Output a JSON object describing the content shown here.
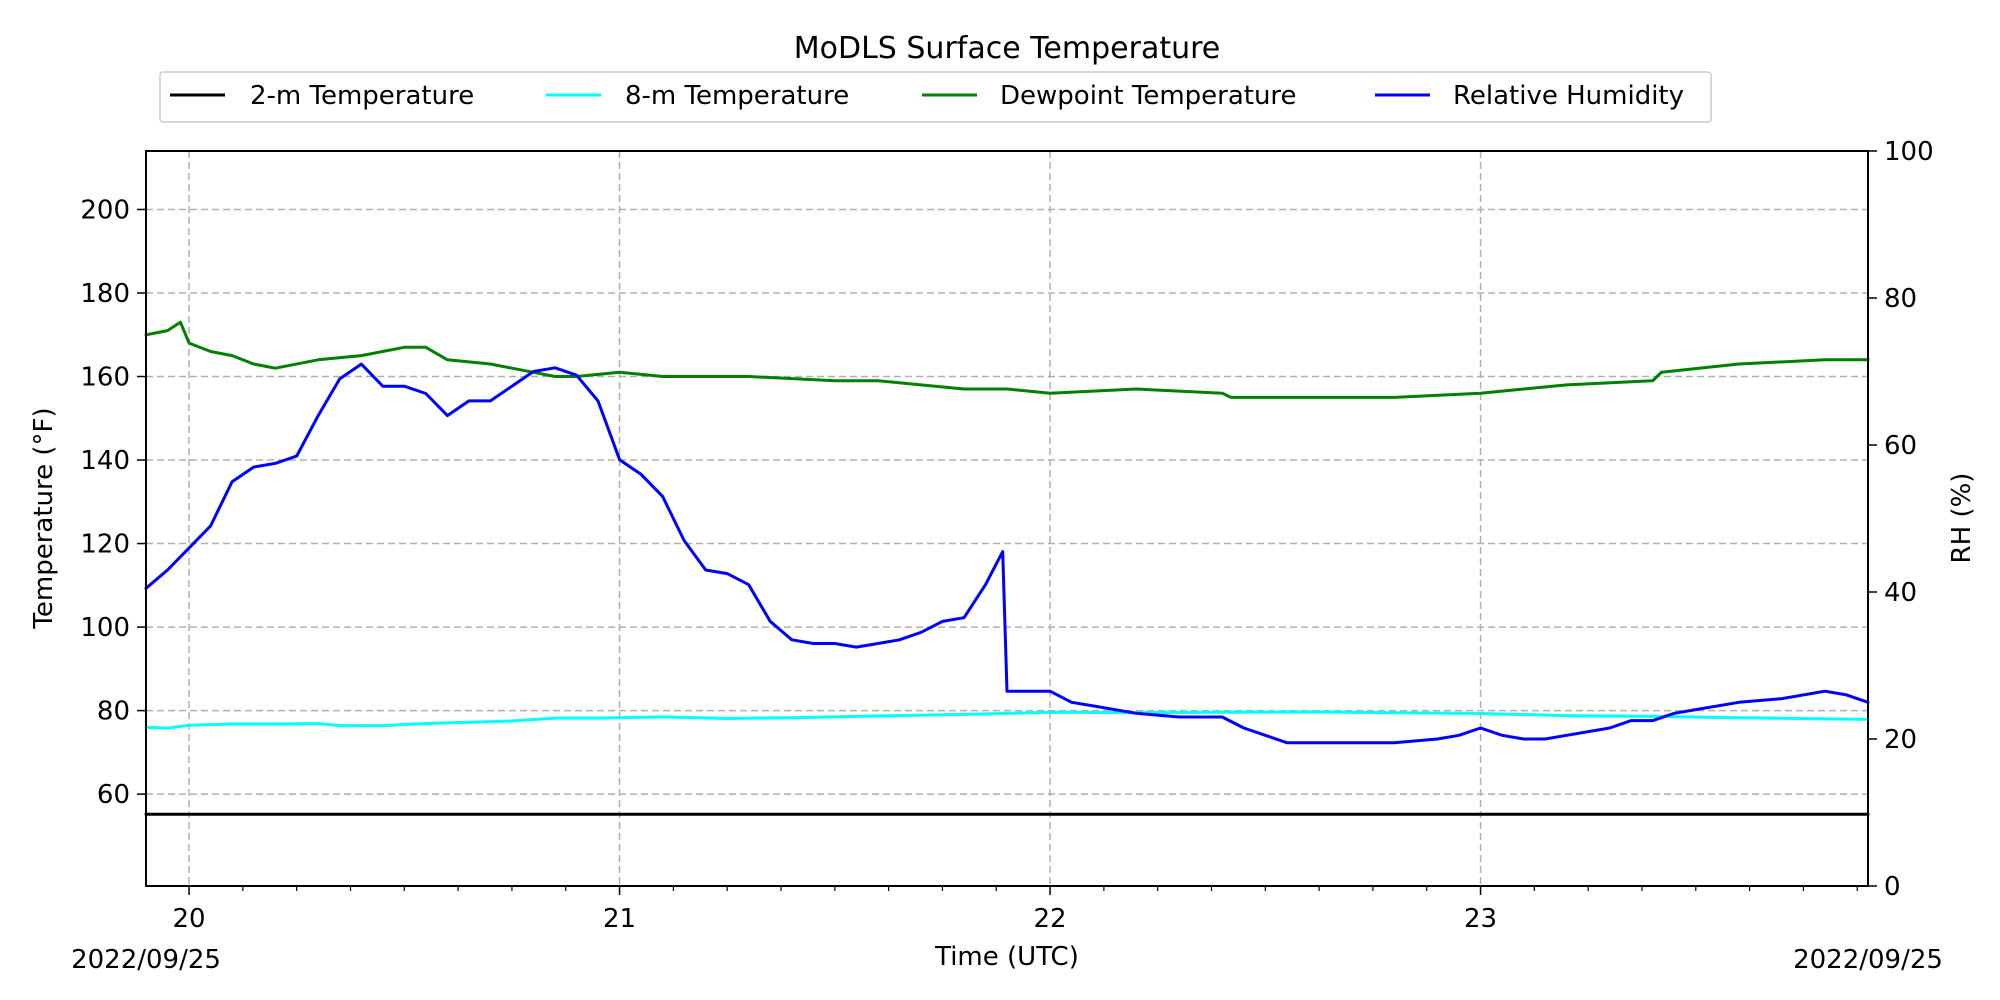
{
  "chart_data": {
    "type": "line",
    "title": "MoDLS Surface Temperature",
    "xlabel": "Time (UTC)",
    "ylabel_left": "Temperature ($^\\circ$F)",
    "ylabel_left_display": "Temperature (°F)",
    "ylabel_right": "RH (%)",
    "x_unit": "hour UTC, 2022/09/25",
    "xlim": [
      19.9,
      23.9
    ],
    "ylim_left": [
      38,
      214
    ],
    "ylim_right": [
      0,
      100
    ],
    "x_ticks": [
      20,
      21,
      22,
      23
    ],
    "x_tick_labels": [
      "20",
      "21",
      "22",
      "23"
    ],
    "y_ticks_left": [
      60,
      80,
      100,
      120,
      140,
      160,
      180,
      200
    ],
    "y_ticks_right": [
      0,
      20,
      40,
      60,
      80,
      100
    ],
    "date_left": "2022/09/25",
    "date_right": "2022/09/25",
    "grid": true,
    "legend_position": "top-center",
    "series": [
      {
        "name": "2-m Temperature",
        "color": "#000000",
        "axis": "left",
        "x": [
          19.9,
          23.9
        ],
        "y": [
          55.2,
          55.2
        ]
      },
      {
        "name": "8-m Temperature",
        "color": "#00ffff",
        "axis": "left",
        "x": [
          19.9,
          19.95,
          20.0,
          20.1,
          20.2,
          20.3,
          20.35,
          20.45,
          20.55,
          20.65,
          20.75,
          20.85,
          20.95,
          21.1,
          21.25,
          21.4,
          21.6,
          21.8,
          22.0,
          22.2,
          22.4,
          22.6,
          22.8,
          23.0,
          23.2,
          23.4,
          23.6,
          23.9
        ],
        "y": [
          76,
          75.8,
          76.5,
          76.8,
          76.8,
          76.9,
          76.4,
          76.4,
          76.9,
          77.2,
          77.5,
          78.2,
          78.2,
          78.5,
          78.1,
          78.3,
          78.7,
          79.1,
          79.6,
          79.5,
          79.6,
          79.7,
          79.5,
          79.3,
          78.8,
          78.6,
          78.3,
          77.9
        ]
      },
      {
        "name": "Dewpoint Temperature",
        "color": "#008000",
        "axis": "left",
        "x": [
          19.9,
          19.95,
          19.98,
          20.0,
          20.05,
          20.1,
          20.15,
          20.2,
          20.3,
          20.4,
          20.5,
          20.55,
          20.6,
          20.7,
          20.75,
          20.8,
          20.85,
          20.9,
          21.0,
          21.1,
          21.3,
          21.5,
          21.6,
          21.7,
          21.8,
          21.9,
          22.0,
          22.2,
          22.4,
          22.42,
          22.5,
          22.6,
          22.8,
          23.0,
          23.2,
          23.4,
          23.42,
          23.6,
          23.8,
          23.9
        ],
        "y": [
          170,
          171,
          173,
          168,
          166,
          165,
          163,
          162,
          164,
          165,
          167,
          167,
          164,
          163,
          162,
          161,
          160,
          160,
          161,
          160,
          160,
          159,
          159,
          158,
          157,
          157,
          156,
          157,
          156,
          155,
          155,
          155,
          155,
          156,
          158,
          159,
          161,
          163,
          164,
          164
        ]
      },
      {
        "name": "Relative Humidity",
        "color": "#0000ff",
        "axis": "right",
        "x": [
          19.9,
          19.95,
          20.0,
          20.05,
          20.1,
          20.15,
          20.2,
          20.25,
          20.3,
          20.35,
          20.4,
          20.45,
          20.5,
          20.55,
          20.6,
          20.65,
          20.7,
          20.75,
          20.8,
          20.85,
          20.9,
          20.95,
          21.0,
          21.05,
          21.1,
          21.15,
          21.2,
          21.25,
          21.3,
          21.35,
          21.4,
          21.45,
          21.5,
          21.55,
          21.6,
          21.65,
          21.7,
          21.75,
          21.8,
          21.85,
          21.89,
          21.9,
          21.95,
          22.0,
          22.05,
          22.1,
          22.2,
          22.3,
          22.4,
          22.45,
          22.5,
          22.55,
          22.6,
          22.7,
          22.8,
          22.9,
          22.95,
          23.0,
          23.05,
          23.1,
          23.15,
          23.2,
          23.3,
          23.35,
          23.4,
          23.45,
          23.5,
          23.6,
          23.7,
          23.8,
          23.85,
          23.9
        ],
        "y": [
          40.5,
          43,
          46,
          49,
          55,
          57,
          57.5,
          58.5,
          64,
          69,
          71,
          68,
          68,
          67,
          64,
          66,
          66,
          68,
          70,
          70.5,
          69.5,
          66,
          58,
          56,
          53,
          47,
          43,
          42.5,
          41,
          36,
          33.5,
          33,
          33,
          32.5,
          33,
          33.5,
          34.5,
          36,
          36.5,
          41,
          45.5,
          26.5,
          26.5,
          26.5,
          25,
          24.5,
          23.5,
          23,
          23,
          21.5,
          20.5,
          19.5,
          19.5,
          19.5,
          19.5,
          20,
          20.5,
          21.5,
          20.5,
          20,
          20,
          20.5,
          21.5,
          22.5,
          22.5,
          23.5,
          24,
          25,
          25.5,
          26.5,
          26,
          25
        ]
      }
    ]
  }
}
